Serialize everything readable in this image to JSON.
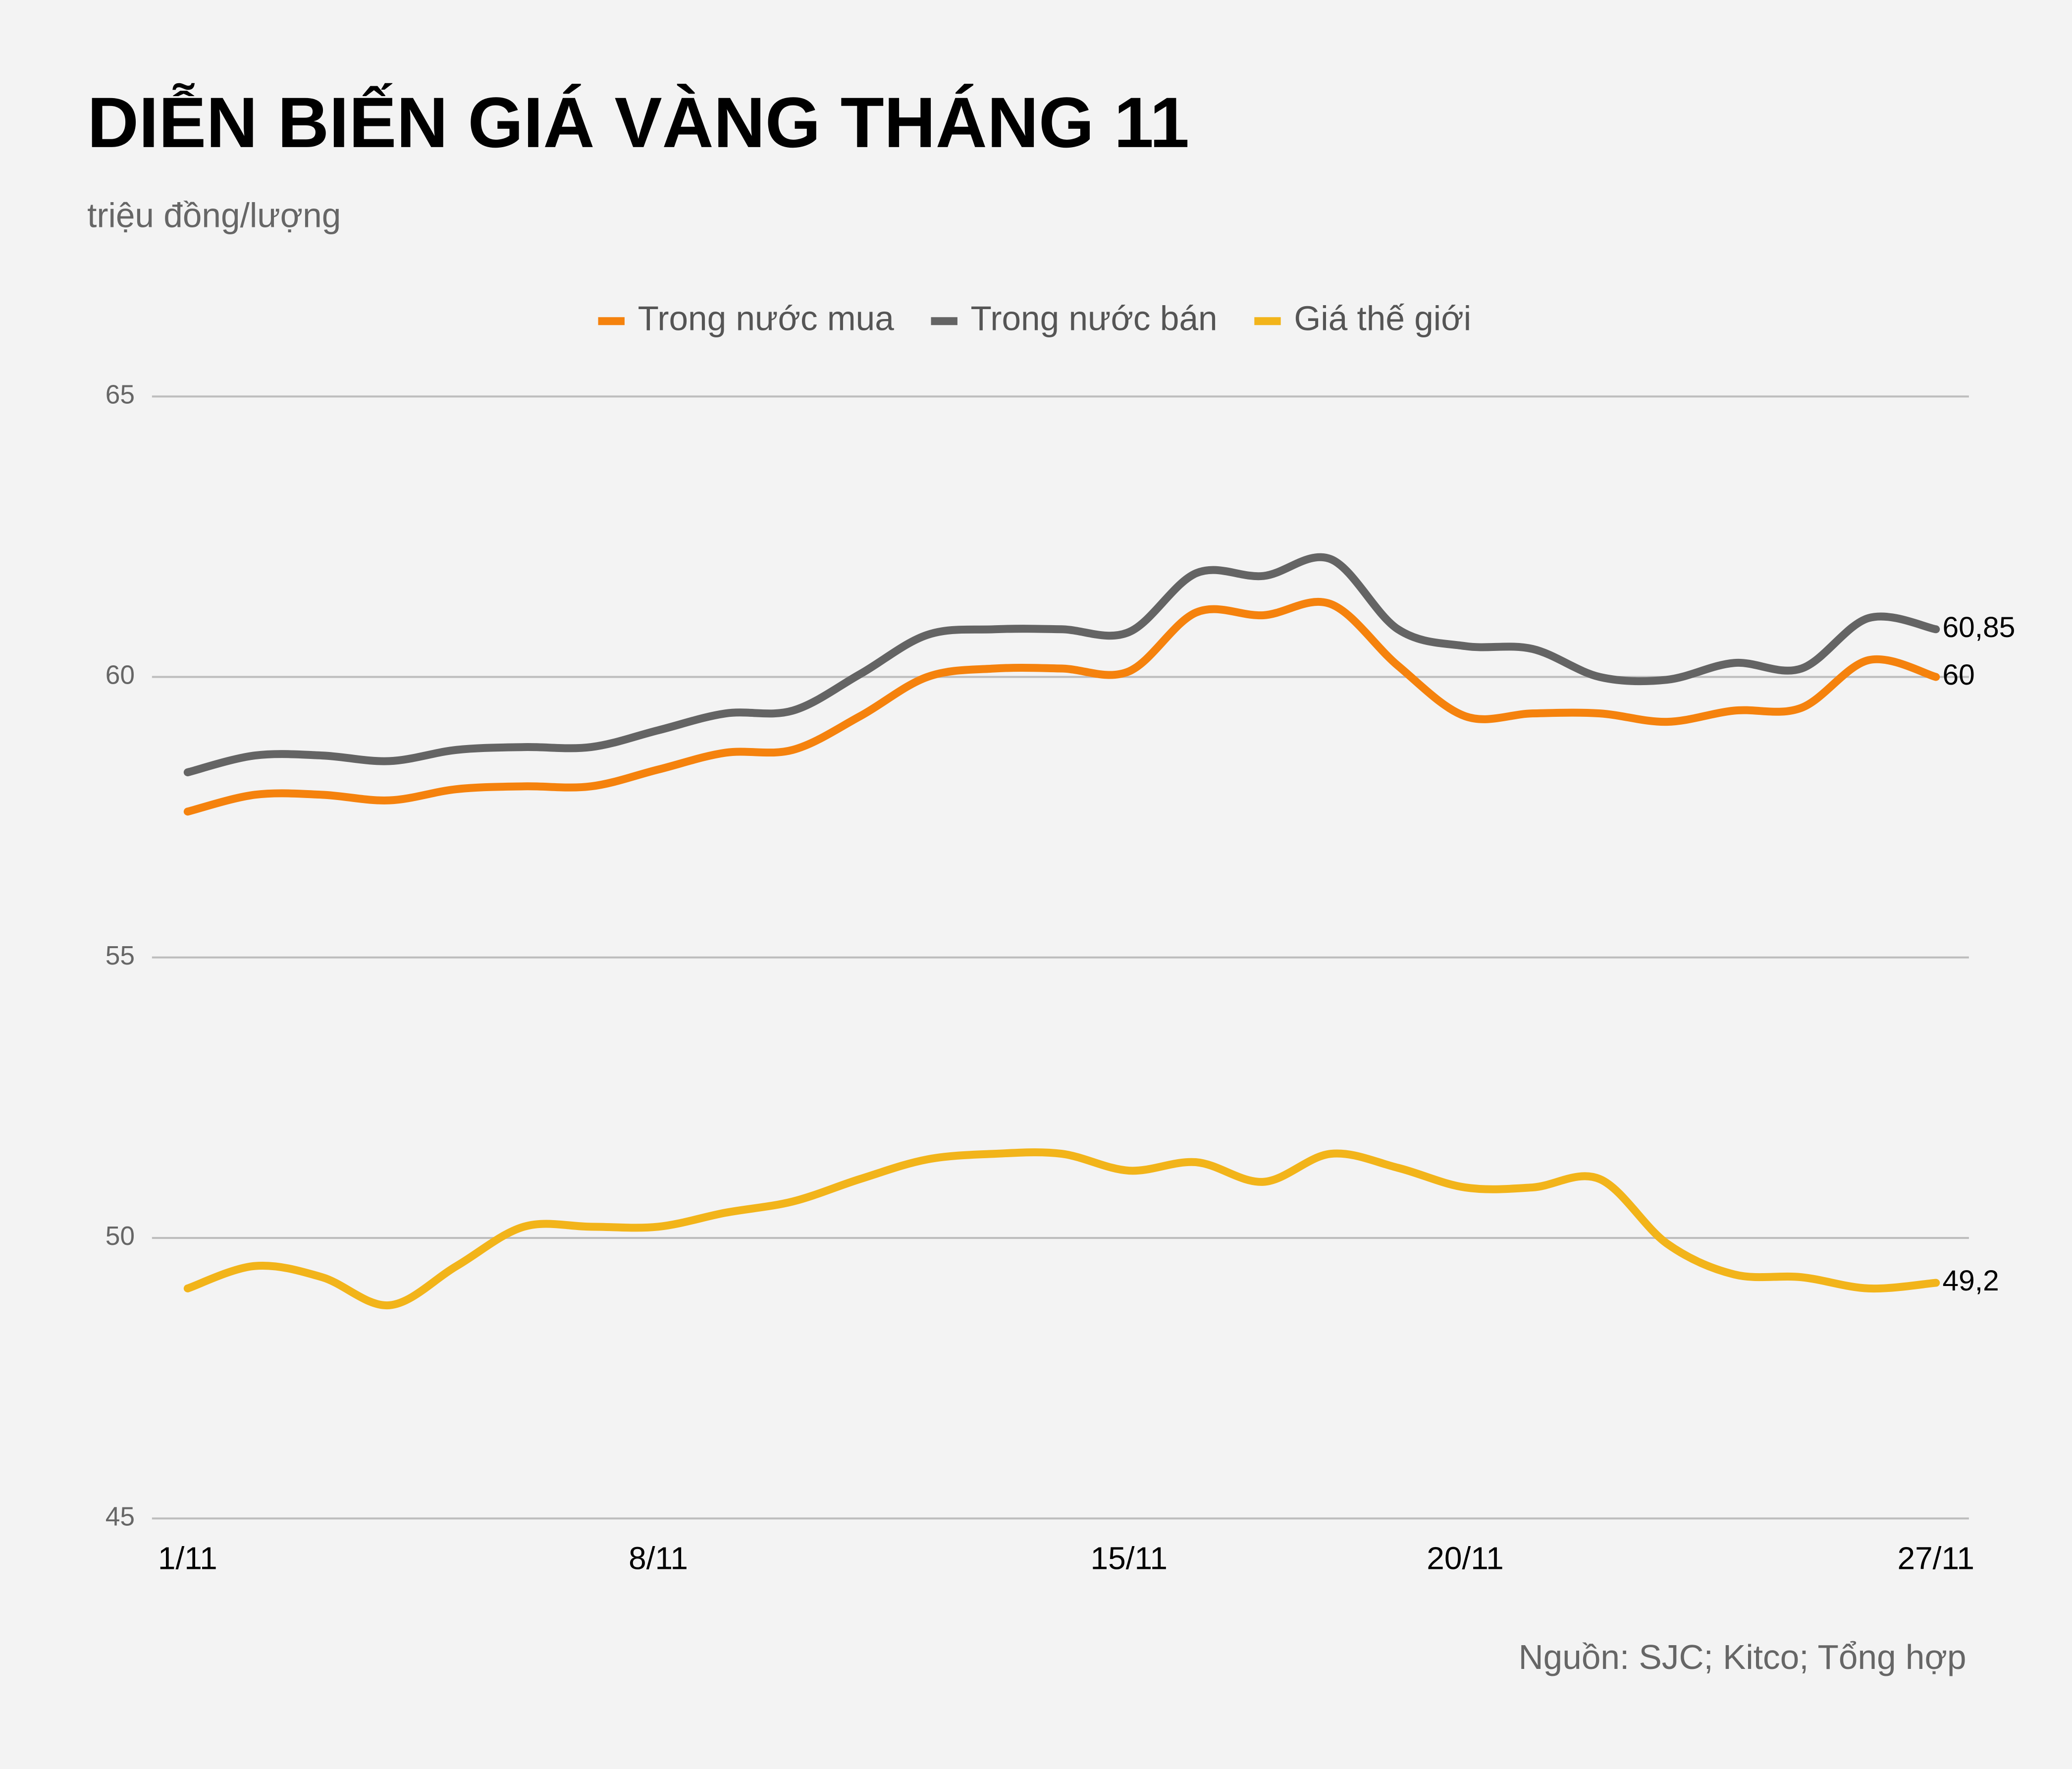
{
  "chart_data": {
    "type": "line",
    "title": "DIỄN BIẾN GIÁ VÀNG THÁNG 11",
    "subtitle": "triệu đồng/lượng",
    "source": "Nguồn: SJC; Kitco; Tổng hợp",
    "categories": [
      "1/11",
      null,
      null,
      null,
      null,
      null,
      null,
      "8/11",
      null,
      null,
      null,
      null,
      null,
      null,
      "15/11",
      null,
      null,
      null,
      null,
      "20/11",
      null,
      null,
      null,
      null,
      null,
      null,
      "27/11"
    ],
    "series": [
      {
        "name": "Trong nước mua",
        "color": "#f5820d",
        "values": [
          57.6,
          57.9,
          57.9,
          57.8,
          58.0,
          58.05,
          58.05,
          58.35,
          58.65,
          58.7,
          59.3,
          60.0,
          60.15,
          60.15,
          60.1,
          61.15,
          61.1,
          61.3,
          60.2,
          59.3,
          59.35,
          59.35,
          59.2,
          59.4,
          59.45,
          60.3,
          60
        ],
        "value_labels": [
          null,
          null,
          null,
          null,
          null,
          null,
          null,
          null,
          null,
          null,
          null,
          null,
          null,
          null,
          null,
          null,
          null,
          null,
          null,
          null,
          null,
          null,
          null,
          null,
          null,
          null,
          "60"
        ]
      },
      {
        "name": "Trong nước bán",
        "color": "#646464",
        "values": [
          58.3,
          58.6,
          58.6,
          58.5,
          58.7,
          58.75,
          58.75,
          59.05,
          59.35,
          59.4,
          60.05,
          60.75,
          60.85,
          60.85,
          60.8,
          61.85,
          61.8,
          62.1,
          60.85,
          60.55,
          60.5,
          60.0,
          59.95,
          60.25,
          60.15,
          61.05,
          60.85
        ],
        "value_labels": [
          null,
          null,
          null,
          null,
          null,
          null,
          null,
          null,
          null,
          null,
          null,
          null,
          null,
          null,
          null,
          null,
          null,
          null,
          null,
          null,
          null,
          null,
          null,
          null,
          null,
          null,
          "60,85"
        ]
      },
      {
        "name": "Giá thế giới",
        "color": "#f2b41a",
        "values": [
          49.1,
          49.5,
          49.3,
          48.8,
          49.5,
          50.2,
          50.2,
          50.2,
          50.45,
          50.65,
          51.05,
          51.4,
          51.5,
          51.5,
          51.2,
          51.35,
          51.0,
          51.5,
          51.25,
          50.9,
          50.9,
          51.05,
          49.9,
          49.35,
          49.3,
          49.1,
          49.2
        ],
        "value_labels": [
          null,
          null,
          null,
          null,
          null,
          null,
          null,
          null,
          null,
          null,
          null,
          null,
          null,
          null,
          null,
          null,
          null,
          null,
          null,
          null,
          null,
          null,
          null,
          null,
          null,
          null,
          "49,2"
        ]
      }
    ],
    "ylim": [
      45,
      65
    ],
    "yticks": [
      45,
      50,
      55,
      60,
      65
    ],
    "grid": true,
    "legend": "top"
  }
}
